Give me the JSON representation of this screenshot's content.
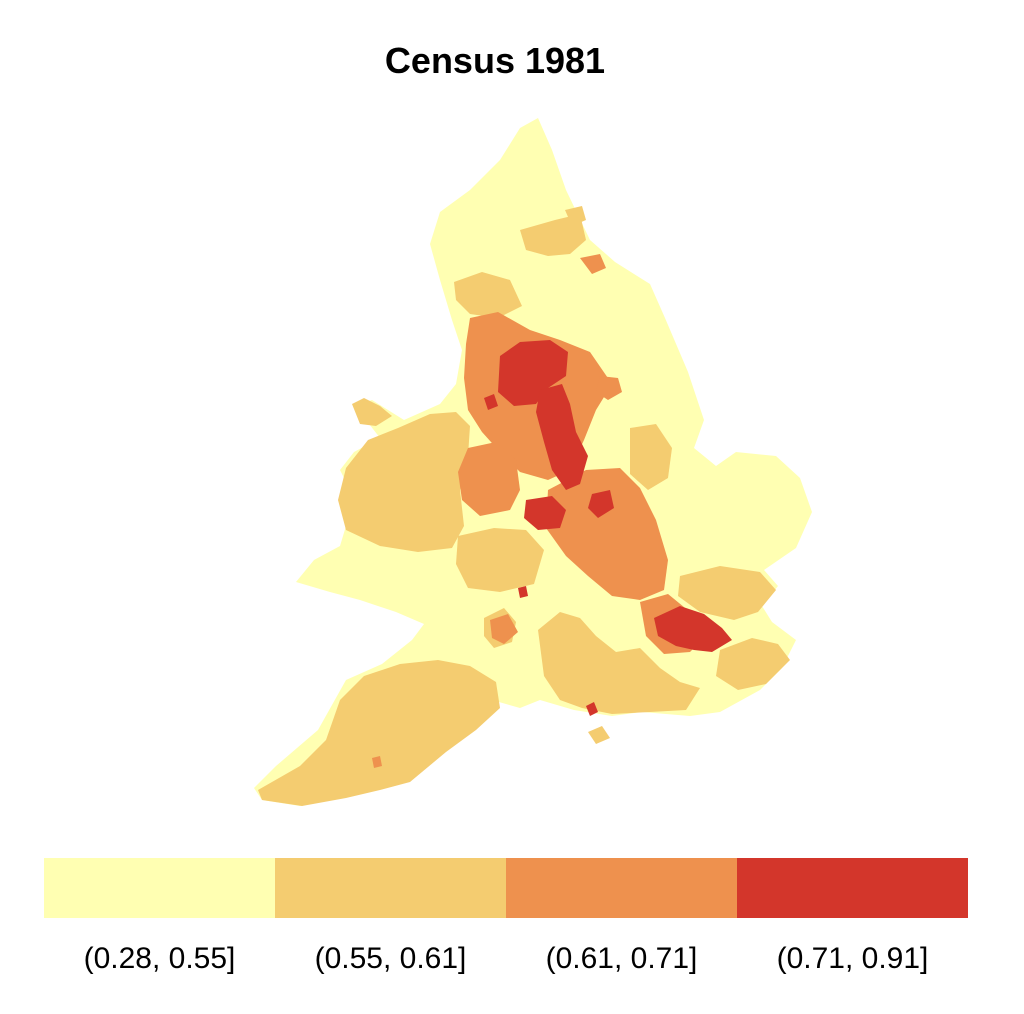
{
  "title": "Census 1981",
  "colors": {
    "class1": "#ffffb2",
    "class2": "#f4cc70",
    "class3": "#ee914e",
    "class4": "#d3362b"
  },
  "legend": [
    {
      "label": "(0.28, 0.55]",
      "color": "#ffffb2"
    },
    {
      "label": "(0.55, 0.61]",
      "color": "#f4cc70"
    },
    {
      "label": "(0.61, 0.71]",
      "color": "#ee914e"
    },
    {
      "label": "(0.71, 0.91]",
      "color": "#d3362b"
    }
  ]
}
